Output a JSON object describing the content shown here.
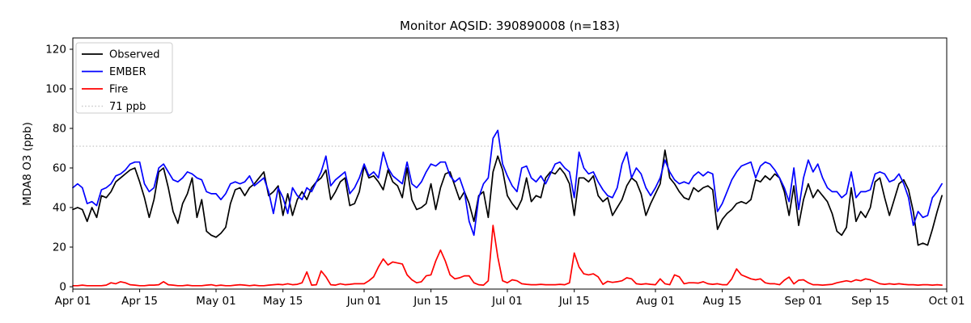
{
  "figure": {
    "title": "Monitor AQSID: 390890008 (n=183)"
  },
  "chart_data": {
    "type": "line",
    "title": "Monitor AQSID: 390890008 (n=183)",
    "xlabel": "",
    "ylabel": "MDA8 O3 (ppb)",
    "grid": false,
    "legend_position": "upper left",
    "x_unit": "day index from Apr 01",
    "n_points": 183,
    "xlim_days": [
      0,
      183
    ],
    "ylim": [
      -1.2,
      125.7
    ],
    "yticks": [
      0,
      20,
      40,
      60,
      80,
      100,
      120
    ],
    "xticks": [
      {
        "day": 0,
        "label": "Apr 01"
      },
      {
        "day": 14,
        "label": "Apr 15"
      },
      {
        "day": 30,
        "label": "May 01"
      },
      {
        "day": 44,
        "label": "May 15"
      },
      {
        "day": 61,
        "label": "Jun 01"
      },
      {
        "day": 75,
        "label": "Jun 15"
      },
      {
        "day": 91,
        "label": "Jul 01"
      },
      {
        "day": 105,
        "label": "Jul 15"
      },
      {
        "day": 122,
        "label": "Aug 01"
      },
      {
        "day": 136,
        "label": "Aug 15"
      },
      {
        "day": 153,
        "label": "Sep 01"
      },
      {
        "day": 167,
        "label": "Sep 15"
      },
      {
        "day": 183,
        "label": "Oct 01"
      }
    ],
    "threshold": {
      "label": "71 ppb",
      "value": 71,
      "color": "#c9c9c9",
      "style": "dotted"
    },
    "legend": [
      {
        "label": "Observed",
        "color": "#000000",
        "style": "solid"
      },
      {
        "label": "EMBER",
        "color": "#0000ff",
        "style": "solid"
      },
      {
        "label": "Fire",
        "color": "#ff0000",
        "style": "solid"
      },
      {
        "label": "71 ppb",
        "color": "#c9c9c9",
        "style": "dotted"
      }
    ],
    "series": [
      {
        "name": "Observed",
        "color": "#000000",
        "values": [
          39,
          40,
          39,
          33,
          40,
          35,
          46,
          45,
          48,
          53,
          55,
          57,
          59,
          60,
          53,
          45,
          35,
          44,
          58,
          60,
          50,
          38,
          32,
          42,
          47,
          55,
          35,
          44,
          28,
          26,
          25,
          27,
          30,
          42,
          49,
          50,
          46,
          50,
          52,
          55,
          58,
          46,
          48,
          51,
          36,
          47,
          36,
          44,
          48,
          44,
          50,
          53,
          55,
          59,
          44,
          48,
          53,
          55,
          41,
          42,
          48,
          61,
          55,
          56,
          53,
          49,
          59,
          53,
          51,
          45,
          60,
          44,
          39,
          40,
          42,
          52,
          39,
          50,
          57,
          58,
          51,
          44,
          48,
          42,
          33,
          46,
          48,
          35,
          58,
          66,
          59,
          46,
          42,
          39,
          44,
          55,
          43,
          46,
          45,
          55,
          58,
          57,
          60,
          57,
          52,
          36,
          55,
          55,
          53,
          56,
          46,
          43,
          45,
          36,
          40,
          44,
          51,
          55,
          53,
          47,
          36,
          42,
          47,
          52,
          69,
          55,
          52,
          48,
          45,
          44,
          50,
          48,
          50,
          51,
          49,
          29,
          34,
          37,
          39,
          42,
          43,
          42,
          44,
          54,
          53,
          56,
          54,
          57,
          55,
          48,
          36,
          51,
          31,
          44,
          52,
          45,
          49,
          46,
          43,
          37,
          28,
          26,
          30,
          50,
          33,
          38,
          35,
          40,
          53,
          55,
          45,
          36,
          44,
          52,
          54,
          49,
          38,
          21,
          22,
          21,
          29,
          38,
          46
        ]
      },
      {
        "name": "EMBER",
        "color": "#0000ff",
        "values": [
          50,
          52,
          50,
          42,
          43,
          41,
          49,
          50,
          52,
          56,
          57,
          59,
          62,
          63,
          63,
          52,
          48,
          50,
          60,
          62,
          58,
          54,
          53,
          55,
          58,
          57,
          55,
          54,
          48,
          47,
          47,
          44,
          47,
          52,
          53,
          52,
          53,
          56,
          51,
          53,
          55,
          48,
          37,
          50,
          45,
          37,
          50,
          46,
          44,
          50,
          48,
          53,
          58,
          66,
          51,
          54,
          56,
          58,
          47,
          50,
          55,
          62,
          56,
          58,
          55,
          68,
          60,
          56,
          54,
          52,
          63,
          52,
          50,
          53,
          58,
          62,
          61,
          63,
          63,
          56,
          53,
          55,
          48,
          33,
          26,
          45,
          52,
          55,
          75,
          79,
          62,
          56,
          51,
          48,
          60,
          61,
          55,
          53,
          56,
          52,
          57,
          62,
          63,
          60,
          58,
          45,
          68,
          60,
          57,
          58,
          53,
          49,
          46,
          45,
          50,
          62,
          68,
          55,
          60,
          57,
          50,
          46,
          50,
          55,
          64,
          58,
          54,
          52,
          53,
          52,
          56,
          58,
          56,
          58,
          57,
          38,
          42,
          48,
          54,
          58,
          61,
          62,
          63,
          55,
          61,
          63,
          62,
          59,
          55,
          50,
          43,
          60,
          39,
          55,
          64,
          58,
          62,
          55,
          50,
          48,
          48,
          45,
          47,
          58,
          45,
          48,
          48,
          49,
          57,
          58,
          57,
          53,
          54,
          57,
          52,
          45,
          31,
          38,
          35,
          36,
          45,
          48,
          52
        ]
      },
      {
        "name": "Fire",
        "color": "#ff0000",
        "values": [
          0.5,
          0.5,
          0.8,
          0.5,
          0.5,
          0.5,
          0.5,
          0.8,
          2,
          1.5,
          2.5,
          2,
          1,
          0.8,
          0.5,
          0.5,
          0.8,
          0.8,
          1,
          2.5,
          1,
          0.8,
          0.5,
          0.5,
          0.8,
          0.5,
          0.5,
          0.5,
          0.8,
          1,
          0.5,
          0.8,
          0.5,
          0.5,
          0.8,
          1,
          0.8,
          0.5,
          0.8,
          0.5,
          0.5,
          0.8,
          1,
          1.2,
          1,
          1.5,
          1,
          1.2,
          2,
          7.5,
          0.8,
          1,
          8,
          5,
          1,
          0.8,
          1.5,
          1,
          1.2,
          1.5,
          1.5,
          1.5,
          3,
          5,
          10,
          14,
          11,
          12.5,
          12,
          11.5,
          6,
          3.5,
          2,
          2.5,
          5.5,
          6,
          13,
          18.5,
          13,
          6,
          4,
          4.5,
          5.5,
          5.5,
          2,
          1,
          0.8,
          3,
          31,
          15,
          3,
          2,
          3.5,
          3,
          1.5,
          1.2,
          1,
          1,
          1.2,
          1,
          1,
          1,
          1.2,
          1,
          2,
          17,
          10,
          6.5,
          6,
          6.5,
          5,
          1.2,
          2.7,
          2.2,
          2.5,
          3,
          4.5,
          4,
          1.5,
          1.2,
          1.5,
          1.2,
          1,
          4,
          1.5,
          1,
          6,
          5,
          1.5,
          2,
          2,
          1.8,
          2.5,
          1.5,
          1.2,
          1.5,
          1,
          1,
          4,
          9,
          6,
          5,
          4,
          3.5,
          4,
          2,
          1.5,
          1.5,
          1,
          3.3,
          4.9,
          1.4,
          3.3,
          3.5,
          2,
          1,
          1,
          0.8,
          1,
          1.2,
          2,
          2.5,
          3,
          2.5,
          3.5,
          3,
          4,
          3.5,
          2.5,
          1.5,
          1.2,
          1.5,
          1.2,
          1.5,
          1.2,
          1,
          1,
          0.8,
          1,
          1,
          0.8,
          1,
          0.8
        ]
      }
    ]
  }
}
